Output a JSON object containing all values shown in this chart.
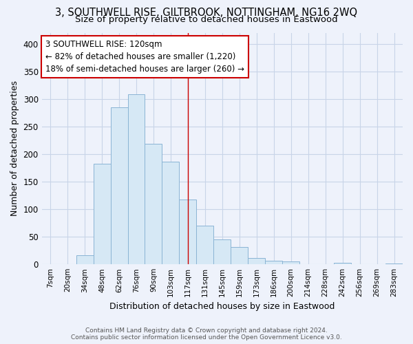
{
  "title": "3, SOUTHWELL RISE, GILTBROOK, NOTTINGHAM, NG16 2WQ",
  "subtitle": "Size of property relative to detached houses in Eastwood",
  "xlabel": "Distribution of detached houses by size in Eastwood",
  "ylabel": "Number of detached properties",
  "bar_labels": [
    "7sqm",
    "20sqm",
    "34sqm",
    "48sqm",
    "62sqm",
    "76sqm",
    "90sqm",
    "103sqm",
    "117sqm",
    "131sqm",
    "145sqm",
    "159sqm",
    "173sqm",
    "186sqm",
    "200sqm",
    "214sqm",
    "228sqm",
    "242sqm",
    "256sqm",
    "269sqm",
    "283sqm"
  ],
  "bar_values": [
    0,
    0,
    16,
    182,
    285,
    308,
    218,
    186,
    118,
    70,
    45,
    32,
    12,
    6,
    5,
    0,
    0,
    3,
    0,
    0,
    2
  ],
  "bar_color": "#d6e8f5",
  "bar_edge_color": "#8ab4d4",
  "highlight_line_index": 8,
  "highlight_line_color": "#cc0000",
  "annotation_title": "3 SOUTHWELL RISE: 120sqm",
  "annotation_line1": "← 82% of detached houses are smaller (1,220)",
  "annotation_line2": "18% of semi-detached houses are larger (260) →",
  "annotation_box_color": "#ffffff",
  "annotation_box_edge": "#cc0000",
  "footer_line1": "Contains HM Land Registry data © Crown copyright and database right 2024.",
  "footer_line2": "Contains public sector information licensed under the Open Government Licence v3.0.",
  "ylim": [
    0,
    420
  ],
  "yticks": [
    0,
    50,
    100,
    150,
    200,
    250,
    300,
    350,
    400
  ],
  "bg_color": "#eef2fb",
  "title_fontsize": 10.5,
  "subtitle_fontsize": 9.5,
  "grid_color": "#c8d4e8"
}
